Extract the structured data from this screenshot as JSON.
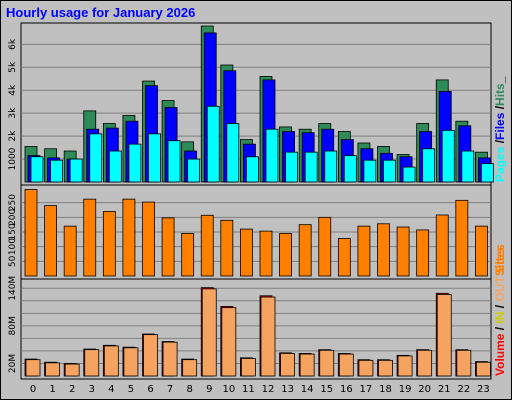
{
  "chart_data": {
    "type": "bar",
    "title": "Hourly usage for January 2026",
    "categories": [
      "0",
      "1",
      "2",
      "3",
      "4",
      "5",
      "6",
      "7",
      "8",
      "9",
      "10",
      "11",
      "12",
      "13",
      "14",
      "15",
      "16",
      "17",
      "18",
      "19",
      "20",
      "21",
      "22",
      "23"
    ],
    "panels": [
      {
        "id": "top",
        "ylim": [
          0,
          6800
        ],
        "yticks": [
          {
            "value": 1000,
            "label": "1000"
          },
          {
            "value": 2000,
            "label": "2k"
          },
          {
            "value": 3000,
            "label": "3k"
          },
          {
            "value": 4000,
            "label": "4k"
          },
          {
            "value": 5000,
            "label": "5k"
          },
          {
            "value": 6000,
            "label": "6k"
          }
        ],
        "series": [
          {
            "name": "Hits",
            "color": "#2e8b57",
            "values": [
              1550,
              1450,
              1350,
              3100,
              2550,
              2900,
              4400,
              3550,
              1750,
              6800,
              5100,
              1850,
              4600,
              2400,
              2300,
              2550,
              2200,
              1700,
              1550,
              1200,
              2550,
              4450,
              2650,
              1300
            ]
          },
          {
            "name": "Files",
            "color": "#0000ff",
            "values": [
              1150,
              1050,
              1000,
              2300,
              2350,
              2650,
              4200,
              3250,
              1350,
              6500,
              4850,
              1650,
              4450,
              2200,
              2150,
              2300,
              1850,
              1450,
              1250,
              1100,
              2200,
              3950,
              2450,
              1050
            ]
          },
          {
            "name": "Pages",
            "color": "#00ffff",
            "values": [
              1100,
              950,
              1000,
              2100,
              1350,
              1650,
              2100,
              1800,
              1000,
              3300,
              2550,
              1100,
              2300,
              1300,
              1300,
              1350,
              1150,
              950,
              950,
              650,
              1450,
              2250,
              1350,
              800
            ]
          }
        ],
        "side_label": [
          {
            "text": "Pages",
            "color": "#00ffff"
          },
          {
            "text": " /",
            "color": "#000000"
          },
          {
            "text": "Files",
            "color": "#0000ff"
          },
          {
            "text": " /",
            "color": "#000000"
          },
          {
            "text": "Hits",
            "color": "#2e8b57"
          },
          {
            "text": "_",
            "color": "#000000"
          }
        ]
      },
      {
        "id": "mid",
        "ylim": [
          0,
          300
        ],
        "yticks": [
          {
            "value": 50,
            "label": "50"
          },
          {
            "value": 100,
            "label": "100"
          },
          {
            "value": 150,
            "label": "150"
          },
          {
            "value": 200,
            "label": "200"
          },
          {
            "value": 250,
            "label": "250"
          }
        ],
        "series": [
          {
            "name": "Sites",
            "color": "#ff8000",
            "values": [
              295,
              240,
              170,
              262,
              220,
              262,
              252,
              198,
              145,
              207,
              190,
              160,
              153,
              145,
              175,
              200,
              128,
              170,
              178,
              167,
              157,
              208,
              258,
              170
            ]
          }
        ],
        "side_label": [
          {
            "text": "Sites",
            "color": "#ff8000"
          }
        ]
      },
      {
        "id": "bot",
        "ylim": [
          0,
          150
        ],
        "yticks": [
          {
            "value": 20,
            "label": "20M"
          },
          {
            "value": 40,
            "label": ""
          },
          {
            "value": 60,
            "label": ""
          },
          {
            "value": 80,
            "label": "80M"
          },
          {
            "value": 100,
            "label": ""
          },
          {
            "value": 120,
            "label": ""
          },
          {
            "value": 140,
            "label": "140M"
          }
        ],
        "series": [
          {
            "name": "Volume",
            "color": "#ff0000",
            "values": [
              27,
              22,
              20,
              43,
              49,
              46,
              67,
              55,
              27,
              141,
              111,
              29,
              128,
              37,
              36,
              42,
              36,
              26,
              26,
              33,
              42,
              132,
              42,
              23
            ]
          },
          {
            "name": "IN",
            "color": "#808000",
            "values": [
              0,
              0,
              0,
              0,
              0,
              0,
              0,
              0,
              0,
              0,
              0,
              0,
              0,
              0,
              0,
              0,
              0,
              0,
              0,
              0,
              0,
              0,
              0,
              0
            ]
          },
          {
            "name": "OUT",
            "color": "#f4a460",
            "values": [
              26,
              21,
              19,
              42,
              48,
              45,
              66,
              54,
              26,
              139,
              109,
              28,
              126,
              36,
              35,
              41,
              35,
              25,
              25,
              32,
              41,
              130,
              41,
              22
            ]
          }
        ],
        "side_label": [
          {
            "text": "Volume",
            "color": "#ff0000"
          },
          {
            "text": " / ",
            "color": "#000000"
          },
          {
            "text": "IN",
            "color": "#cccc00"
          },
          {
            "text": " / ",
            "color": "#000000"
          },
          {
            "text": "OUT",
            "color": "#f4a460"
          },
          {
            "text": " ",
            "color": "#000000"
          },
          {
            "text": "Sites",
            "color": "#ff8000"
          }
        ]
      }
    ],
    "colors": {
      "background": "#c0c0c0",
      "title": "#0000ff",
      "grid": "#808080",
      "bar_outline": "#000000"
    }
  }
}
